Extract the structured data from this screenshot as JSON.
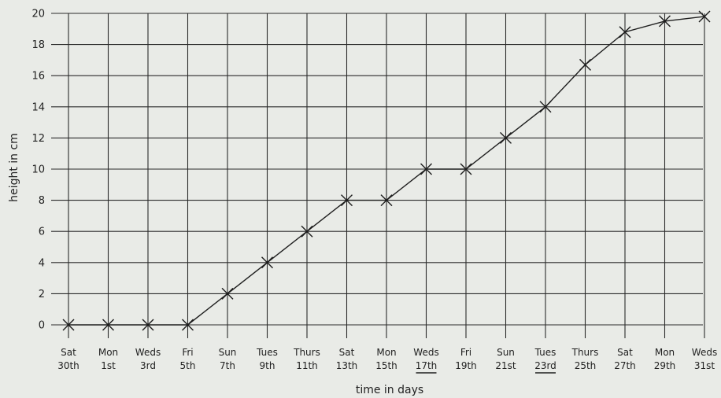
{
  "chart_data": {
    "type": "line",
    "title": "",
    "xlabel": "time in days",
    "ylabel": "height in cm",
    "ylim": [
      0,
      20
    ],
    "yticks": [
      0,
      2,
      4,
      6,
      8,
      10,
      12,
      14,
      16,
      18,
      20
    ],
    "grid": true,
    "categories": [
      {
        "day": "Sat",
        "date": "30th",
        "underline": false
      },
      {
        "day": "Mon",
        "date": "1st",
        "underline": false
      },
      {
        "day": "Weds",
        "date": "3rd",
        "underline": false
      },
      {
        "day": "Fri",
        "date": "5th",
        "underline": false
      },
      {
        "day": "Sun",
        "date": "7th",
        "underline": false
      },
      {
        "day": "Tues",
        "date": "9th",
        "underline": false
      },
      {
        "day": "Thurs",
        "date": "11th",
        "underline": false
      },
      {
        "day": "Sat",
        "date": "13th",
        "underline": false
      },
      {
        "day": "Mon",
        "date": "15th",
        "underline": false
      },
      {
        "day": "Weds",
        "date": "17th",
        "underline": true
      },
      {
        "day": "Fri",
        "date": "19th",
        "underline": false
      },
      {
        "day": "Sun",
        "date": "21st",
        "underline": false
      },
      {
        "day": "Tues",
        "date": "23rd",
        "underline": true
      },
      {
        "day": "Thurs",
        "date": "25th",
        "underline": false
      },
      {
        "day": "Sat",
        "date": "27th",
        "underline": false
      },
      {
        "day": "Mon",
        "date": "29th",
        "underline": false
      },
      {
        "day": "Weds",
        "date": "31st",
        "underline": false
      }
    ],
    "values": [
      0,
      0,
      0,
      0,
      2,
      4,
      6,
      8,
      8,
      10,
      10,
      12,
      14,
      16.7,
      18.8,
      19.5,
      19.8
    ],
    "marker": "x",
    "colors": {
      "line": "#1e1e1e",
      "grid": "#2b2b2b",
      "background": "#e9ebe7"
    }
  }
}
